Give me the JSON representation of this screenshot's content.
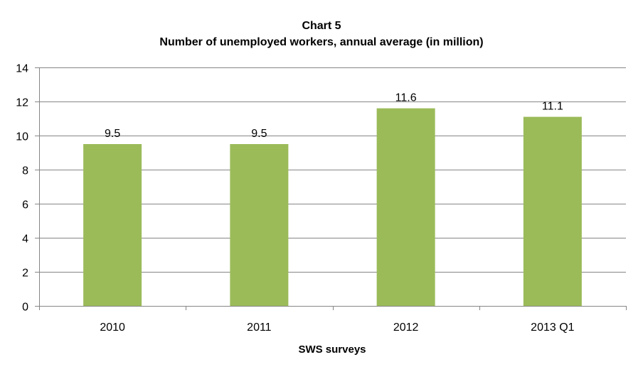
{
  "chart_data": {
    "type": "bar",
    "title": "Chart 5",
    "subtitle": "Number of unemployed workers, annual average (in million)",
    "xlabel": "SWS surveys",
    "ylabel": "",
    "categories": [
      "2010",
      "2011",
      "2012",
      "2013 Q1"
    ],
    "values": [
      9.5,
      9.5,
      11.6,
      11.1
    ],
    "data_labels": [
      "9.5",
      "9.5",
      "11.6",
      "11.1"
    ],
    "ylim": [
      0,
      14
    ],
    "yticks": [
      0,
      2,
      4,
      6,
      8,
      10,
      12,
      14
    ],
    "grid": true,
    "legend": "none",
    "colors": {
      "bar": "#9BBB59",
      "grid": "#868686"
    }
  }
}
